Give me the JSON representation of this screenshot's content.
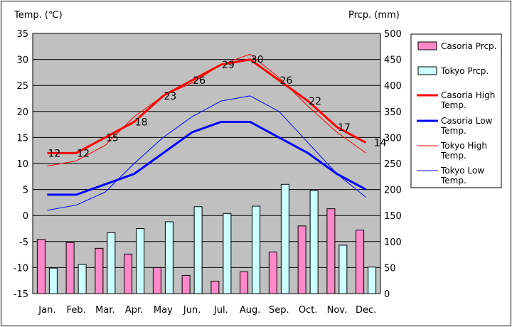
{
  "chart_data": {
    "type": "bar+line",
    "ylabel_left": "Temp. (℃)",
    "ylabel_right": "Prcp. (mm)",
    "categories": [
      "Jan.",
      "Feb.",
      "Mar.",
      "Apr.",
      "May",
      "Jun.",
      "Jul.",
      "Aug.",
      "Sep.",
      "Oct.",
      "Nov.",
      "Dec."
    ],
    "y_left": {
      "min": -15,
      "max": 35,
      "ticks": [
        "35",
        "30",
        "25",
        "20",
        "15",
        "10",
        "5",
        "0",
        "-5",
        "-10",
        "-15"
      ]
    },
    "y_right": {
      "min": 0,
      "max": 500,
      "ticks": [
        "500",
        "450",
        "400",
        "350",
        "300",
        "250",
        "200",
        "150",
        "100",
        "50",
        "0"
      ]
    },
    "bars": [
      {
        "name": "Casoria Prcp.",
        "color": "#ff88c8",
        "values": [
          104,
          98,
          87,
          76,
          50,
          35,
          24,
          42,
          80,
          130,
          163,
          122
        ]
      },
      {
        "name": "Tokyo Prcp.",
        "color": "#ccffff",
        "values": [
          49,
          56,
          117,
          125,
          138,
          167,
          154,
          168,
          210,
          198,
          93,
          51
        ]
      }
    ],
    "lines": [
      {
        "name": "Casoria High Temp.",
        "color": "#ff0000",
        "width": 3,
        "values": [
          12,
          12,
          15,
          18,
          23,
          26,
          29,
          30,
          26,
          22,
          17,
          14
        ],
        "labels": [
          "12",
          "12",
          "15",
          "18",
          "23",
          "26",
          "29",
          "30",
          "26",
          "22",
          "17",
          "14"
        ]
      },
      {
        "name": "Casoria Low Temp.",
        "color": "#0000ff",
        "width": 3,
        "values": [
          4,
          4,
          6,
          8,
          12,
          16,
          18,
          18,
          15,
          12,
          8,
          5
        ]
      },
      {
        "name": "Tokyo High Temp.",
        "color": "#ff0000",
        "width": 1,
        "values": [
          9.5,
          10.5,
          13.5,
          19,
          23,
          25.5,
          29,
          31,
          26.5,
          21,
          16,
          12
        ]
      },
      {
        "name": "Tokyo Low Temp.",
        "color": "#0000ff",
        "width": 1,
        "values": [
          1,
          2,
          4.5,
          10,
          15,
          19,
          22,
          23,
          20,
          14,
          8,
          3.5
        ]
      }
    ],
    "legend": [
      {
        "label": "Casoria Prcp.",
        "kind": "bar",
        "color": "#ff88c8"
      },
      {
        "label": "Tokyo Prcp.",
        "kind": "bar",
        "color": "#ccffff"
      },
      {
        "label": "Casoria High Temp.",
        "kind": "line",
        "color": "#ff0000",
        "width": 3
      },
      {
        "label": "Casoria Low Temp.",
        "kind": "line",
        "color": "#0000ff",
        "width": 3
      },
      {
        "label": "Tokyo High Temp.",
        "kind": "line",
        "color": "#ff0000",
        "width": 1
      },
      {
        "label": "Tokyo Low Temp.",
        "kind": "line",
        "color": "#0000ff",
        "width": 1
      }
    ],
    "legend_position": "right",
    "plot_background": "#c0c0c0",
    "grid": true
  }
}
